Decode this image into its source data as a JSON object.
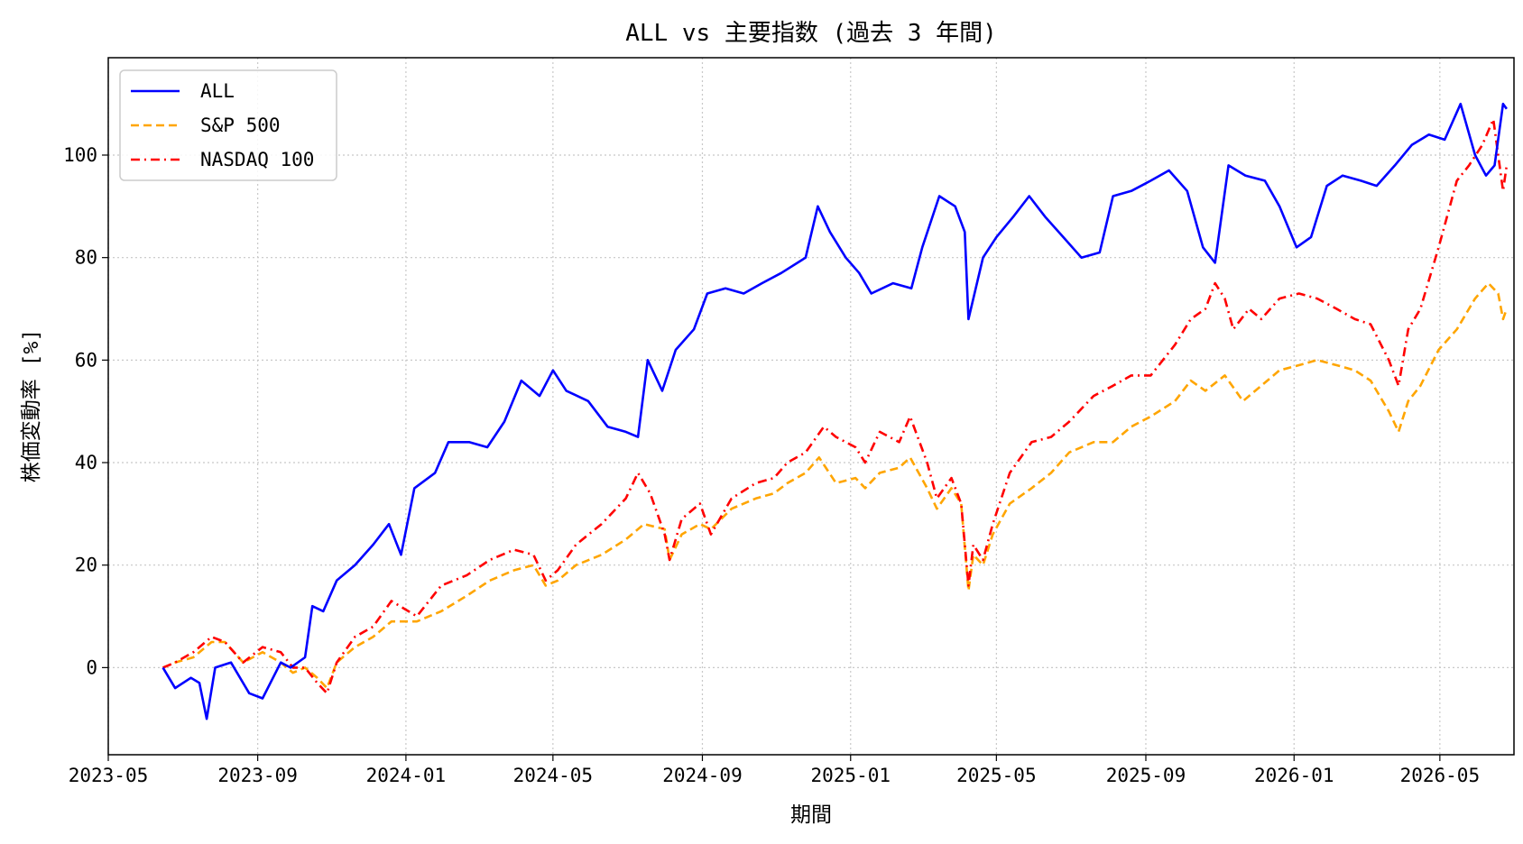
{
  "chart_data": {
    "type": "line",
    "title": "ALL vs 主要指数 (過去 3 年間)",
    "xlabel": "期間",
    "ylabel": "株価変動率 [%]",
    "xlim": [
      "2023-05-01",
      "2026-07-01"
    ],
    "ylim": [
      -17,
      119
    ],
    "xticks": [
      "2023-05",
      "2023-09",
      "2024-01",
      "2024-05",
      "2024-09",
      "2025-01",
      "2025-05",
      "2025-09",
      "2026-01",
      "2026-05"
    ],
    "yticks": [
      0,
      20,
      40,
      60,
      80,
      100
    ],
    "grid": true,
    "legend_position": "top-left",
    "series": [
      {
        "name": "ALL",
        "color": "#0000ff",
        "style": "solid",
        "points": [
          [
            "2023-06-15",
            0
          ],
          [
            "2023-06-25",
            -4
          ],
          [
            "2023-07-08",
            -2
          ],
          [
            "2023-07-15",
            -3
          ],
          [
            "2023-07-21",
            -10
          ],
          [
            "2023-07-28",
            0
          ],
          [
            "2023-08-10",
            1
          ],
          [
            "2023-08-25",
            -5
          ],
          [
            "2023-09-05",
            -6
          ],
          [
            "2023-09-20",
            1
          ],
          [
            "2023-09-28",
            0
          ],
          [
            "2023-10-10",
            2
          ],
          [
            "2023-10-16",
            12
          ],
          [
            "2023-10-25",
            11
          ],
          [
            "2023-11-05",
            17
          ],
          [
            "2023-11-20",
            20
          ],
          [
            "2023-12-05",
            24
          ],
          [
            "2023-12-18",
            28
          ],
          [
            "2023-12-28",
            22
          ],
          [
            "2024-01-08",
            35
          ],
          [
            "2024-01-25",
            38
          ],
          [
            "2024-02-05",
            44
          ],
          [
            "2024-02-22",
            44
          ],
          [
            "2024-03-08",
            43
          ],
          [
            "2024-03-22",
            48
          ],
          [
            "2024-04-05",
            56
          ],
          [
            "2024-04-20",
            53
          ],
          [
            "2024-05-01",
            58
          ],
          [
            "2024-05-12",
            54
          ],
          [
            "2024-05-30",
            52
          ],
          [
            "2024-06-15",
            47
          ],
          [
            "2024-06-30",
            46
          ],
          [
            "2024-07-10",
            45
          ],
          [
            "2024-07-18",
            60
          ],
          [
            "2024-07-30",
            54
          ],
          [
            "2024-08-10",
            62
          ],
          [
            "2024-08-25",
            66
          ],
          [
            "2024-09-05",
            73
          ],
          [
            "2024-09-20",
            74
          ],
          [
            "2024-10-05",
            73
          ],
          [
            "2024-10-20",
            75
          ],
          [
            "2024-11-05",
            77
          ],
          [
            "2024-11-25",
            80
          ],
          [
            "2024-12-05",
            90
          ],
          [
            "2024-12-15",
            85
          ],
          [
            "2024-12-28",
            80
          ],
          [
            "2025-01-08",
            77
          ],
          [
            "2025-01-18",
            73
          ],
          [
            "2025-02-05",
            75
          ],
          [
            "2025-02-20",
            74
          ],
          [
            "2025-03-01",
            82
          ],
          [
            "2025-03-15",
            92
          ],
          [
            "2025-03-28",
            90
          ],
          [
            "2025-04-05",
            85
          ],
          [
            "2025-04-08",
            68
          ],
          [
            "2025-04-20",
            80
          ],
          [
            "2025-05-01",
            84
          ],
          [
            "2025-05-15",
            88
          ],
          [
            "2025-05-28",
            92
          ],
          [
            "2025-06-10",
            88
          ],
          [
            "2025-06-25",
            84
          ],
          [
            "2025-07-10",
            80
          ],
          [
            "2025-07-25",
            81
          ],
          [
            "2025-08-05",
            92
          ],
          [
            "2025-08-20",
            93
          ],
          [
            "2025-09-05",
            95
          ],
          [
            "2025-09-20",
            97
          ],
          [
            "2025-10-05",
            93
          ],
          [
            "2025-10-18",
            82
          ],
          [
            "2025-10-28",
            79
          ],
          [
            "2025-11-08",
            98
          ],
          [
            "2025-11-22",
            96
          ],
          [
            "2025-12-08",
            95
          ],
          [
            "2025-12-20",
            90
          ],
          [
            "2026-01-03",
            82
          ],
          [
            "2026-01-15",
            84
          ],
          [
            "2026-01-28",
            94
          ],
          [
            "2026-02-10",
            96
          ],
          [
            "2026-02-25",
            95
          ],
          [
            "2026-03-10",
            94
          ],
          [
            "2026-03-25",
            98
          ],
          [
            "2026-04-08",
            102
          ],
          [
            "2026-04-22",
            104
          ],
          [
            "2026-05-05",
            103
          ],
          [
            "2026-05-18",
            110
          ],
          [
            "2026-05-30",
            100
          ],
          [
            "2026-06-08",
            96
          ],
          [
            "2026-06-15",
            98
          ],
          [
            "2026-06-22",
            110
          ],
          [
            "2026-06-25",
            109
          ]
        ]
      },
      {
        "name": "S&P 500",
        "color": "#ffa500",
        "style": "dashed",
        "points": [
          [
            "2023-06-15",
            0
          ],
          [
            "2023-06-25",
            1
          ],
          [
            "2023-07-10",
            2
          ],
          [
            "2023-07-25",
            5
          ],
          [
            "2023-08-05",
            5
          ],
          [
            "2023-08-20",
            1
          ],
          [
            "2023-09-05",
            3
          ],
          [
            "2023-09-20",
            1
          ],
          [
            "2023-09-30",
            -1
          ],
          [
            "2023-10-10",
            0
          ],
          [
            "2023-10-20",
            -2
          ],
          [
            "2023-10-28",
            -4
          ],
          [
            "2023-11-05",
            1
          ],
          [
            "2023-11-20",
            4
          ],
          [
            "2023-12-05",
            6
          ],
          [
            "2023-12-20",
            9
          ],
          [
            "2024-01-10",
            9
          ],
          [
            "2024-01-30",
            11
          ],
          [
            "2024-02-20",
            14
          ],
          [
            "2024-03-10",
            17
          ],
          [
            "2024-03-30",
            19
          ],
          [
            "2024-04-15",
            20
          ],
          [
            "2024-04-25",
            16
          ],
          [
            "2024-05-05",
            17
          ],
          [
            "2024-05-20",
            20
          ],
          [
            "2024-06-10",
            22
          ],
          [
            "2024-06-30",
            25
          ],
          [
            "2024-07-15",
            28
          ],
          [
            "2024-08-01",
            27
          ],
          [
            "2024-08-05",
            21
          ],
          [
            "2024-08-15",
            26
          ],
          [
            "2024-08-30",
            28
          ],
          [
            "2024-09-08",
            27
          ],
          [
            "2024-09-25",
            31
          ],
          [
            "2024-10-15",
            33
          ],
          [
            "2024-10-30",
            34
          ],
          [
            "2024-11-10",
            36
          ],
          [
            "2024-11-25",
            38
          ],
          [
            "2024-12-06",
            41
          ],
          [
            "2024-12-20",
            36
          ],
          [
            "2025-01-05",
            37
          ],
          [
            "2025-01-13",
            35
          ],
          [
            "2025-01-25",
            38
          ],
          [
            "2025-02-10",
            39
          ],
          [
            "2025-02-19",
            41
          ],
          [
            "2025-03-05",
            35
          ],
          [
            "2025-03-13",
            31
          ],
          [
            "2025-03-25",
            35
          ],
          [
            "2025-04-02",
            32
          ],
          [
            "2025-04-08",
            15
          ],
          [
            "2025-04-12",
            22
          ],
          [
            "2025-04-20",
            20
          ],
          [
            "2025-04-28",
            26
          ],
          [
            "2025-05-12",
            32
          ],
          [
            "2025-05-30",
            35
          ],
          [
            "2025-06-15",
            38
          ],
          [
            "2025-06-30",
            42
          ],
          [
            "2025-07-20",
            44
          ],
          [
            "2025-08-05",
            44
          ],
          [
            "2025-08-20",
            47
          ],
          [
            "2025-09-05",
            49
          ],
          [
            "2025-09-25",
            52
          ],
          [
            "2025-10-08",
            56
          ],
          [
            "2025-10-20",
            54
          ],
          [
            "2025-11-05",
            57
          ],
          [
            "2025-11-20",
            52
          ],
          [
            "2025-12-05",
            55
          ],
          [
            "2025-12-20",
            58
          ],
          [
            "2026-01-05",
            59
          ],
          [
            "2026-01-20",
            60
          ],
          [
            "2026-02-05",
            59
          ],
          [
            "2026-02-20",
            58
          ],
          [
            "2026-03-05",
            56
          ],
          [
            "2026-03-20",
            50
          ],
          [
            "2026-03-28",
            46
          ],
          [
            "2026-04-05",
            52
          ],
          [
            "2026-04-15",
            55
          ],
          [
            "2026-04-30",
            62
          ],
          [
            "2026-05-15",
            66
          ],
          [
            "2026-05-30",
            72
          ],
          [
            "2026-06-10",
            75
          ],
          [
            "2026-06-18",
            73
          ],
          [
            "2026-06-22",
            68
          ],
          [
            "2026-06-25",
            70
          ]
        ]
      },
      {
        "name": "NASDAQ 100",
        "color": "#ff0000",
        "style": "dashdot",
        "points": [
          [
            "2023-06-15",
            0
          ],
          [
            "2023-06-25",
            1
          ],
          [
            "2023-07-10",
            3
          ],
          [
            "2023-07-25",
            6
          ],
          [
            "2023-08-05",
            5
          ],
          [
            "2023-08-20",
            1
          ],
          [
            "2023-09-05",
            4
          ],
          [
            "2023-09-20",
            3
          ],
          [
            "2023-09-30",
            0
          ],
          [
            "2023-10-10",
            0
          ],
          [
            "2023-10-20",
            -3
          ],
          [
            "2023-10-28",
            -5
          ],
          [
            "2023-11-05",
            1
          ],
          [
            "2023-11-20",
            6
          ],
          [
            "2023-12-05",
            8
          ],
          [
            "2023-12-20",
            13
          ],
          [
            "2024-01-10",
            10
          ],
          [
            "2024-01-30",
            16
          ],
          [
            "2024-02-20",
            18
          ],
          [
            "2024-03-10",
            21
          ],
          [
            "2024-03-30",
            23
          ],
          [
            "2024-04-15",
            22
          ],
          [
            "2024-04-25",
            17
          ],
          [
            "2024-05-05",
            19
          ],
          [
            "2024-05-20",
            24
          ],
          [
            "2024-06-10",
            28
          ],
          [
            "2024-06-30",
            33
          ],
          [
            "2024-07-10",
            38
          ],
          [
            "2024-07-20",
            34
          ],
          [
            "2024-08-01",
            26
          ],
          [
            "2024-08-05",
            21
          ],
          [
            "2024-08-15",
            29
          ],
          [
            "2024-08-30",
            32
          ],
          [
            "2024-09-08",
            26
          ],
          [
            "2024-09-25",
            33
          ],
          [
            "2024-10-15",
            36
          ],
          [
            "2024-10-30",
            37
          ],
          [
            "2024-11-10",
            40
          ],
          [
            "2024-11-25",
            42
          ],
          [
            "2024-12-10",
            47
          ],
          [
            "2024-12-20",
            45
          ],
          [
            "2025-01-05",
            43
          ],
          [
            "2025-01-13",
            40
          ],
          [
            "2025-01-25",
            46
          ],
          [
            "2025-02-10",
            44
          ],
          [
            "2025-02-19",
            49
          ],
          [
            "2025-03-05",
            40
          ],
          [
            "2025-03-13",
            33
          ],
          [
            "2025-03-25",
            37
          ],
          [
            "2025-04-02",
            32
          ],
          [
            "2025-04-08",
            16
          ],
          [
            "2025-04-12",
            24
          ],
          [
            "2025-04-20",
            21
          ],
          [
            "2025-04-28",
            28
          ],
          [
            "2025-05-12",
            38
          ],
          [
            "2025-05-30",
            44
          ],
          [
            "2025-06-15",
            45
          ],
          [
            "2025-06-30",
            48
          ],
          [
            "2025-07-20",
            53
          ],
          [
            "2025-08-05",
            55
          ],
          [
            "2025-08-20",
            57
          ],
          [
            "2025-09-05",
            57
          ],
          [
            "2025-09-25",
            63
          ],
          [
            "2025-10-08",
            68
          ],
          [
            "2025-10-20",
            70
          ],
          [
            "2025-10-28",
            75
          ],
          [
            "2025-11-05",
            72
          ],
          [
            "2025-11-12",
            66
          ],
          [
            "2025-11-25",
            70
          ],
          [
            "2025-12-05",
            68
          ],
          [
            "2025-12-20",
            72
          ],
          [
            "2026-01-05",
            73
          ],
          [
            "2026-01-20",
            72
          ],
          [
            "2026-02-05",
            70
          ],
          [
            "2026-02-20",
            68
          ],
          [
            "2026-03-05",
            67
          ],
          [
            "2026-03-20",
            60
          ],
          [
            "2026-03-28",
            55
          ],
          [
            "2026-04-05",
            66
          ],
          [
            "2026-04-15",
            70
          ],
          [
            "2026-04-30",
            82
          ],
          [
            "2026-05-15",
            95
          ],
          [
            "2026-05-25",
            98
          ],
          [
            "2026-06-05",
            102
          ],
          [
            "2026-06-14",
            107
          ],
          [
            "2026-06-18",
            100
          ],
          [
            "2026-06-22",
            93
          ],
          [
            "2026-06-25",
            98
          ]
        ]
      }
    ]
  }
}
